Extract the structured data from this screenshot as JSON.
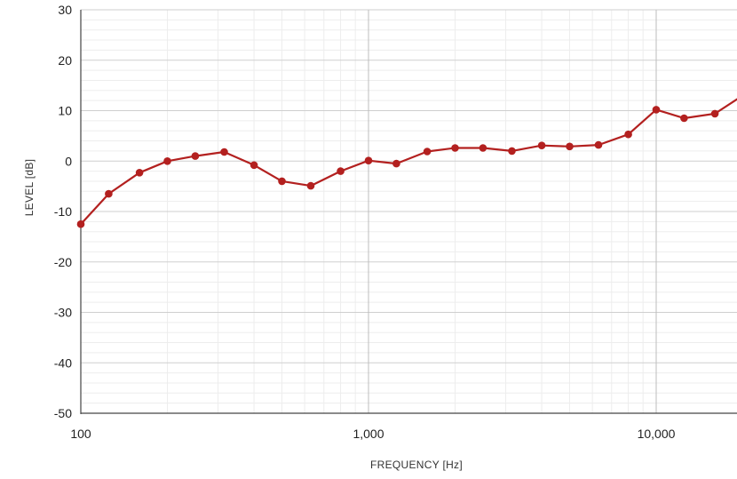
{
  "chart_data": {
    "type": "line",
    "xlabel": "FREQUENCY [Hz]",
    "ylabel": "LEVEL [dB]",
    "x_scale": "log",
    "xlim": [
      100,
      25000
    ],
    "ylim": [
      -50,
      30
    ],
    "grid": true,
    "x_tick_values": [
      100,
      1000,
      10000
    ],
    "x_tick_labels": [
      "100",
      "1,000",
      "10,000"
    ],
    "y_tick_values": [
      30,
      20,
      10,
      0,
      -10,
      -20,
      -30,
      -40,
      -50
    ],
    "y_tick_labels": [
      "30",
      "20",
      "10",
      "0",
      "-10",
      "-20",
      "-30",
      "-40",
      "-50"
    ],
    "line_color": "#b3201f",
    "series": [
      {
        "x": [
          100,
          125,
          160,
          200,
          250,
          315,
          400,
          500,
          630,
          800,
          1000,
          1250,
          1600,
          2000,
          2500,
          3150,
          4000,
          5000,
          6300,
          8000,
          10000,
          12500,
          16000,
          20000
        ],
        "y": [
          -12.5,
          -6.5,
          -2.3,
          0,
          1,
          1.8,
          -0.8,
          -4,
          -4.9,
          -2,
          0.1,
          -0.5,
          1.9,
          2.6,
          2.6,
          2,
          3.1,
          2.9,
          3.2,
          5.3,
          10.2,
          8.5,
          9.4,
          13
        ]
      }
    ]
  }
}
